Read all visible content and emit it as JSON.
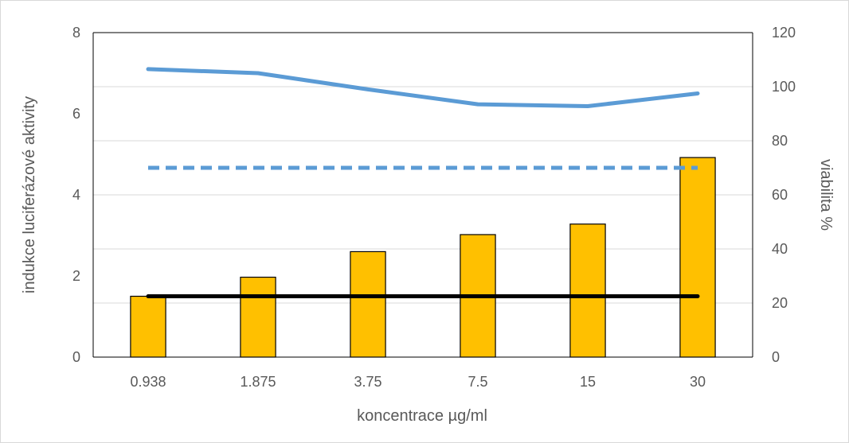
{
  "chart_data": {
    "type": "bar",
    "categories": [
      "0.938",
      "1.875",
      "3.75",
      "7.5",
      "15",
      "30"
    ],
    "xlabel": "koncentrace µg/ml",
    "ylabel": "indukce luciferázové aktivity",
    "y2label": "viabilita %",
    "ylim": [
      0,
      8
    ],
    "y2lim": [
      0,
      120
    ],
    "yticks": [
      "0",
      "2",
      "4",
      "6",
      "8"
    ],
    "y2ticks": [
      "0",
      "20",
      "40",
      "60",
      "80",
      "100",
      "120"
    ],
    "grid": true,
    "series": [
      {
        "kind": "bar",
        "axis": "left",
        "color": "#ffc000",
        "values": [
          1.5,
          1.97,
          2.6,
          3.02,
          3.28,
          4.92
        ]
      },
      {
        "kind": "line",
        "axis": "left",
        "color": "#000000",
        "style": "solid",
        "values": [
          1.5,
          1.5,
          1.5,
          1.5,
          1.5,
          1.5
        ]
      },
      {
        "kind": "line",
        "axis": "right",
        "color": "#5b9bd5",
        "style": "solid",
        "values": [
          106.5,
          105,
          99,
          93.5,
          92.8,
          97.5
        ]
      },
      {
        "kind": "line",
        "axis": "right",
        "color": "#5b9bd5",
        "style": "dashed",
        "values": [
          70,
          70,
          70,
          70,
          70,
          70
        ]
      }
    ]
  }
}
